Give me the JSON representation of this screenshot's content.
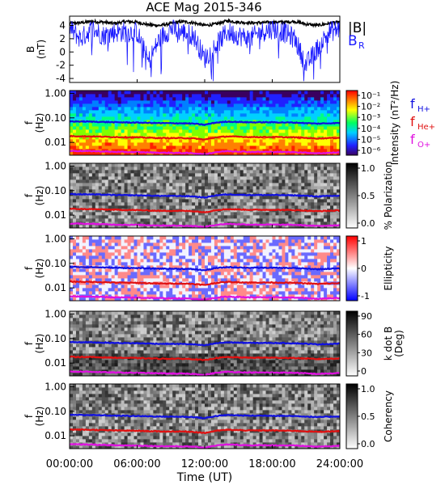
{
  "title": "ACE Mag 2015-346",
  "xlabel": "Time (UT)",
  "x_ticks": [
    "00:00:00",
    "06:00:00",
    "12:00:00",
    "18:00:00",
    "24:00:00"
  ],
  "colors": {
    "B_total": "#000000",
    "B_R": "#1a1aff",
    "f_H": "#1010e0",
    "f_He": "#e01010",
    "f_O": "#e010e0"
  },
  "chart_data": [
    {
      "type": "line",
      "panel": "magnetic-field",
      "ylabel_line1": "B",
      "ylabel_line2": "(nT)",
      "y_ticks": [
        "4",
        "2",
        "0",
        "-2",
        "-4"
      ],
      "ylim": [
        -4.6,
        5.4
      ],
      "xlim_hours": [
        0,
        24
      ],
      "legend": [
        "|B|",
        "B",
        "R"
      ],
      "series": [
        {
          "name": "|B|",
          "color": "#000000",
          "x_hours": [
            0,
            1,
            2,
            3,
            4,
            5,
            6,
            7,
            8,
            9,
            10,
            11,
            12,
            13,
            14,
            15,
            16,
            17,
            18,
            19,
            20,
            21,
            22,
            23,
            24
          ],
          "values": [
            4.3,
            4.4,
            4.6,
            4.5,
            4.3,
            4.6,
            4.5,
            4.1,
            4.0,
            4.3,
            4.6,
            4.4,
            4.0,
            4.2,
            4.7,
            4.5,
            4.4,
            4.4,
            4.5,
            4.5,
            4.6,
            4.2,
            4.0,
            4.3,
            4.5
          ]
        },
        {
          "name": "B_R",
          "color": "#1a1aff",
          "x_hours": [
            0,
            1,
            2,
            3,
            4,
            5,
            6,
            7,
            8,
            9,
            10,
            11,
            12,
            13,
            14,
            15,
            16,
            17,
            18,
            19,
            20,
            21,
            22,
            23,
            24
          ],
          "values": [
            3.5,
            2.0,
            3.5,
            2.5,
            3.0,
            3.0,
            3.0,
            -1.5,
            2.0,
            3.5,
            3.0,
            2.5,
            -1.0,
            1.0,
            3.0,
            2.5,
            2.0,
            3.0,
            3.5,
            3.0,
            2.0,
            -2.0,
            0.5,
            3.0,
            3.5
          ]
        }
      ]
    },
    {
      "type": "heatmap",
      "panel": "intensity",
      "ylabel_line1": "f",
      "ylabel_line2": "(Hz)",
      "y_scale": "log",
      "ylim_hz": [
        0.003,
        1.3
      ],
      "y_ticks": [
        "1.00",
        "0.10",
        "0.01"
      ],
      "colorbar_label": "Intensity (nT²/Hz)",
      "colorbar_ticks": [
        "10⁻¹",
        "10⁻²",
        "10⁻³",
        "10⁻⁴",
        "10⁻⁵",
        "10⁻⁶"
      ],
      "colorbar_scale": "log",
      "colorbar_range": [
        1e-06,
        0.3
      ],
      "lines": [
        "f_H+",
        "f_He+",
        "f_O+"
      ]
    },
    {
      "type": "heatmap",
      "panel": "polarization",
      "ylabel_line1": "f",
      "ylabel_line2": "(Hz)",
      "y_scale": "log",
      "y_ticks": [
        "1.00",
        "0.10",
        "0.01"
      ],
      "colorbar_label": "% Polarization",
      "colorbar_ticks": [
        "1.0",
        "0.5",
        "0.0"
      ],
      "colorbar_range": [
        0,
        1
      ],
      "lines": [
        "f_H+",
        "f_He+",
        "f_O+"
      ]
    },
    {
      "type": "heatmap",
      "panel": "ellipticity",
      "ylabel_line1": "f",
      "ylabel_line2": "(Hz)",
      "y_scale": "log",
      "y_ticks": [
        "1.00",
        "0.10",
        "0.01"
      ],
      "colorbar_label": "Ellipticity",
      "colorbar_ticks": [
        "1",
        "0",
        "-1"
      ],
      "colorbar_range": [
        -1,
        1
      ],
      "lines": [
        "f_H+",
        "f_He+",
        "f_O+"
      ]
    },
    {
      "type": "heatmap",
      "panel": "k-dot-b",
      "ylabel_line1": "f",
      "ylabel_line2": "(Hz)",
      "y_scale": "log",
      "y_ticks": [
        "1.00",
        "0.10",
        "0.01"
      ],
      "colorbar_label_line1": "k dot B",
      "colorbar_label_line2": "(Deg)",
      "colorbar_ticks": [
        "90",
        "60",
        "30",
        "0"
      ],
      "colorbar_range": [
        0,
        90
      ],
      "lines": [
        "f_H+",
        "f_He+",
        "f_O+"
      ]
    },
    {
      "type": "heatmap",
      "panel": "coherency",
      "ylabel_line1": "f",
      "ylabel_line2": "(Hz)",
      "y_scale": "log",
      "y_ticks": [
        "1.00",
        "0.10",
        "0.01"
      ],
      "colorbar_label": "Coherency",
      "colorbar_ticks": [
        "1.0",
        "0.5",
        "0.0"
      ],
      "colorbar_range": [
        0,
        1
      ],
      "lines": [
        "f_H+",
        "f_He+",
        "f_O+"
      ]
    }
  ],
  "legend_freq": [
    {
      "main": "f",
      "sub": "H+"
    },
    {
      "main": "f",
      "sub": "He+"
    },
    {
      "main": "f",
      "sub": "O+"
    }
  ],
  "cyclotron_frequencies_hz": {
    "x_hours": [
      0,
      2,
      4,
      6,
      8,
      10,
      11,
      12,
      13,
      14,
      16,
      18,
      20,
      22,
      24
    ],
    "f_H+": [
      0.072,
      0.07,
      0.066,
      0.064,
      0.061,
      0.06,
      0.058,
      0.052,
      0.064,
      0.07,
      0.066,
      0.066,
      0.064,
      0.058,
      0.062
    ],
    "f_He+": [
      0.018,
      0.0175,
      0.0165,
      0.016,
      0.015,
      0.015,
      0.0145,
      0.013,
      0.016,
      0.0175,
      0.0165,
      0.0165,
      0.016,
      0.0145,
      0.0155
    ],
    "f_O+": [
      0.0045,
      0.0044,
      0.0041,
      0.004,
      0.0038,
      0.0037,
      0.0036,
      0.0033,
      0.004,
      0.0044,
      0.0041,
      0.0041,
      0.004,
      0.0036,
      0.0039
    ]
  }
}
